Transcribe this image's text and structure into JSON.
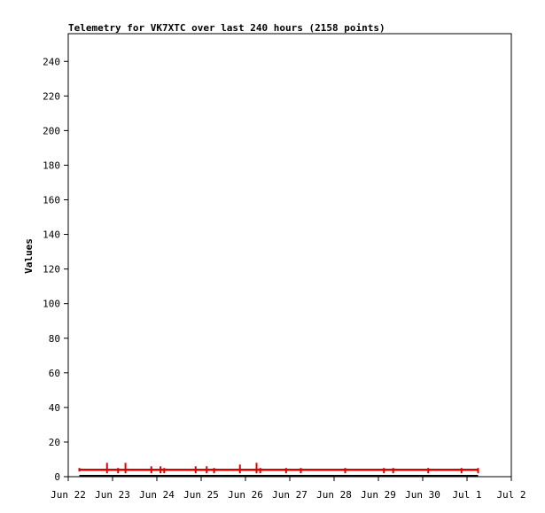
{
  "chart_data": {
    "type": "line",
    "title": "Telemetry for VK7XTC over last 240 hours (2158 points)",
    "ylabel": "Values",
    "xlabel": "",
    "x_ticks": [
      "Jun 22",
      "Jun 23",
      "Jun 24",
      "Jun 25",
      "Jun 26",
      "Jun 27",
      "Jun 28",
      "Jun 29",
      "Jun 30",
      "Jul 1",
      "Jul 2"
    ],
    "y_ticks": [
      0,
      20,
      40,
      60,
      80,
      100,
      120,
      140,
      160,
      180,
      200,
      220,
      240
    ],
    "xlim": [
      "Jun 22",
      "Jul 2"
    ],
    "ylim": [
      0,
      256
    ],
    "grid": false,
    "legend": "none",
    "colors": {
      "series": "#e00000",
      "baseline": "#000000",
      "axis": "#000000",
      "text": "#000000"
    },
    "series": [
      {
        "baseline_value": 4,
        "points": [
          {
            "x": "Jun 22 06:00",
            "y": 4
          },
          {
            "x": "Jun 22 21:00",
            "y": 8
          },
          {
            "x": "Jun 23 03:00",
            "y": 5
          },
          {
            "x": "Jun 23 07:00",
            "y": 8
          },
          {
            "x": "Jun 23 21:00",
            "y": 6
          },
          {
            "x": "Jun 24 02:00",
            "y": 6
          },
          {
            "x": "Jun 24 04:00",
            "y": 5
          },
          {
            "x": "Jun 24 21:00",
            "y": 6
          },
          {
            "x": "Jun 25 03:00",
            "y": 6
          },
          {
            "x": "Jun 25 07:00",
            "y": 5
          },
          {
            "x": "Jun 25 21:00",
            "y": 7
          },
          {
            "x": "Jun 26 06:00",
            "y": 8
          },
          {
            "x": "Jun 26 08:00",
            "y": 5
          },
          {
            "x": "Jun 26 22:00",
            "y": 5
          },
          {
            "x": "Jun 27 06:00",
            "y": 5
          },
          {
            "x": "Jun 28 06:00",
            "y": 5
          },
          {
            "x": "Jun 29 03:00",
            "y": 5
          },
          {
            "x": "Jun 29 08:00",
            "y": 5
          },
          {
            "x": "Jun 30 03:00",
            "y": 5
          },
          {
            "x": "Jun 30 21:00",
            "y": 5
          },
          {
            "x": "Jul 1 06:00",
            "y": 5
          }
        ],
        "end": "Jul 1 06:00"
      }
    ]
  }
}
